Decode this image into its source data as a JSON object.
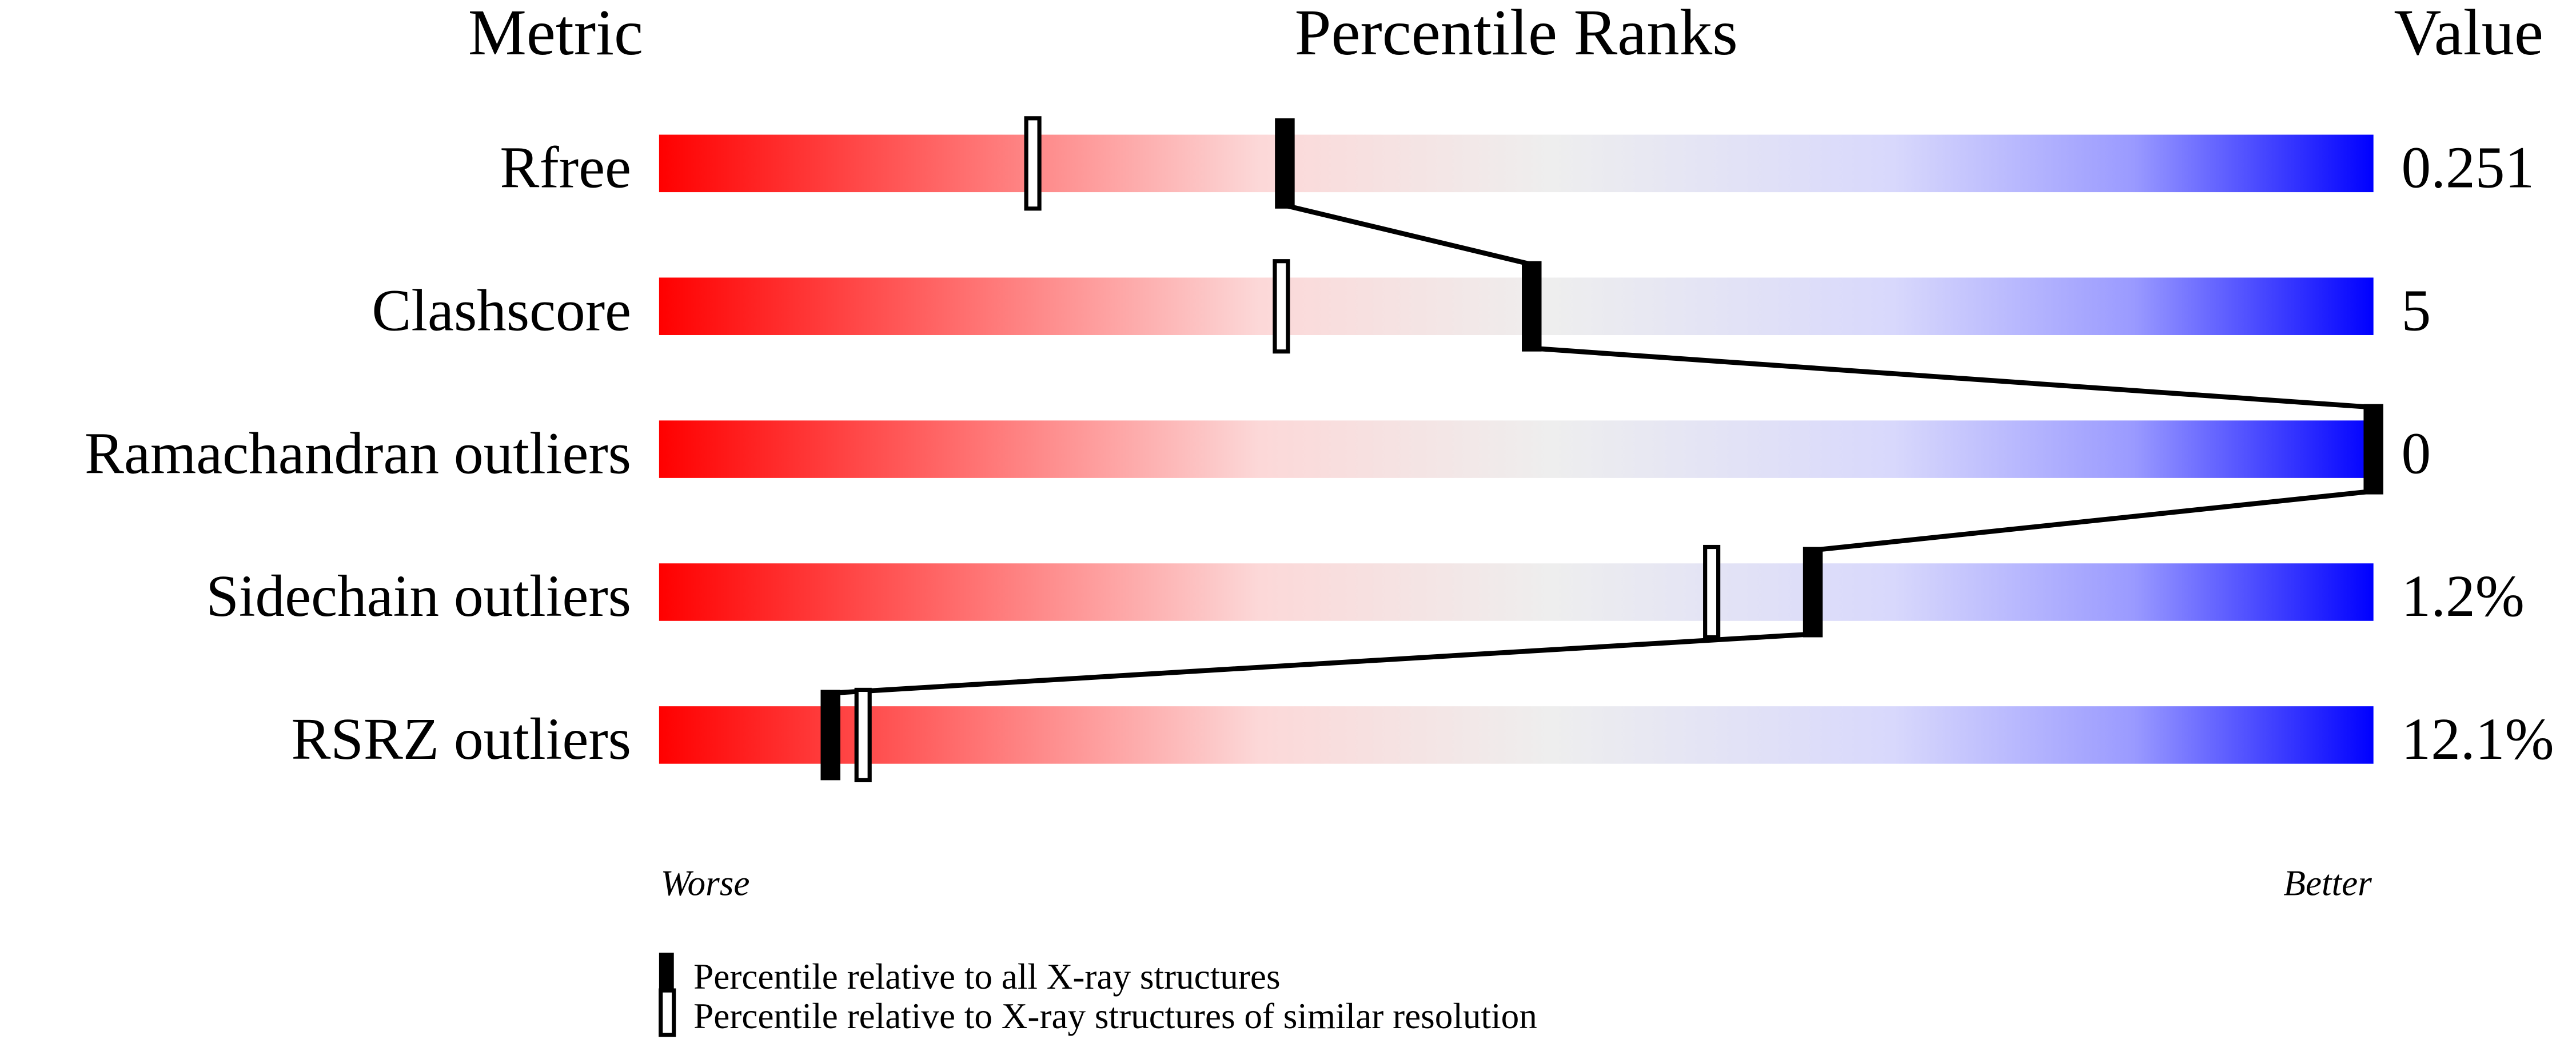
{
  "chart_data": {
    "type": "bar",
    "headers": {
      "metric": "Metric",
      "ranks": "Percentile Ranks",
      "value": "Value"
    },
    "categories": [
      "Rfree",
      "Clashscore",
      "Ramachandran outliers",
      "Sidechain outliers",
      "RSRZ outliers"
    ],
    "values": [
      "0.251",
      "5",
      "0",
      "1.2%",
      "12.1%"
    ],
    "series": [
      {
        "name": "Percentile relative to all X-ray structures",
        "style": "filled",
        "values": [
          36.5,
          50.9,
          100,
          67.3,
          10.0
        ]
      },
      {
        "name": "Percentile relative to X-ray structures of similar resolution",
        "style": "open",
        "values": [
          21.8,
          36.3,
          null,
          61.4,
          11.9
        ]
      }
    ],
    "xlim": [
      0,
      100
    ],
    "axis_labels": {
      "left": "Worse",
      "right": "Better"
    },
    "colors": {
      "worse": "#ff0000",
      "middle": "#eeeeee",
      "better": "#0000ff",
      "marker": "#000000"
    }
  }
}
